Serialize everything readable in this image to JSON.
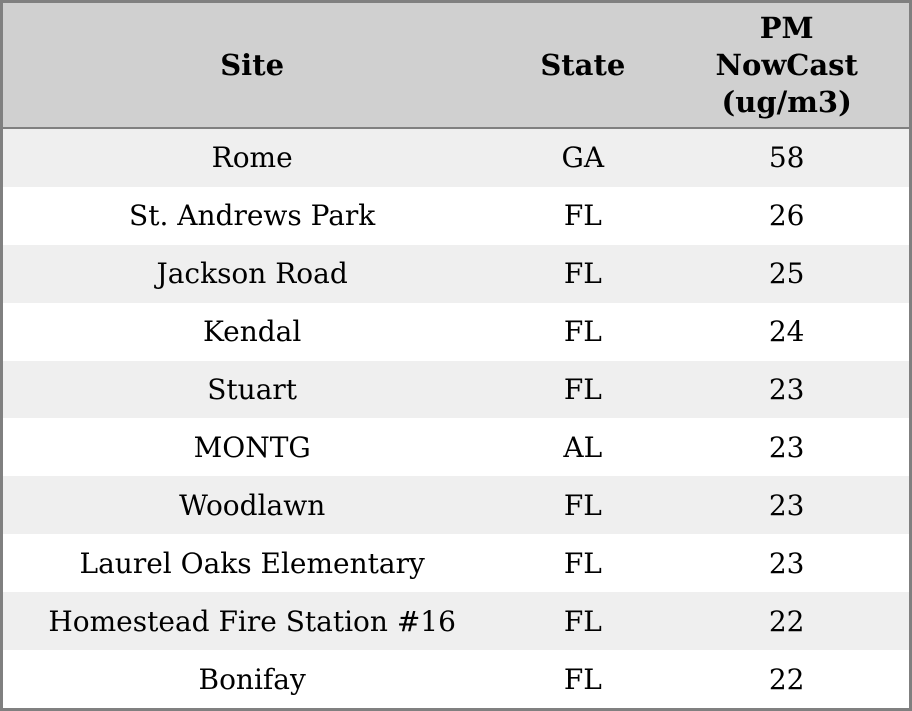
{
  "chart_data": {
    "type": "table",
    "title": "",
    "columns": [
      "Site",
      "State",
      "PM NowCast (ug/m3)"
    ],
    "rows": [
      [
        "Rome",
        "GA",
        58
      ],
      [
        "St. Andrews Park",
        "FL",
        26
      ],
      [
        "Jackson Road",
        "FL",
        25
      ],
      [
        "Kendal",
        "FL",
        24
      ],
      [
        "Stuart",
        "FL",
        23
      ],
      [
        "MONTG",
        "AL",
        23
      ],
      [
        "Woodlawn",
        "FL",
        23
      ],
      [
        "Laurel Oaks Elementary",
        "FL",
        23
      ],
      [
        "Homestead Fire Station #16",
        "FL",
        22
      ],
      [
        "Bonifay",
        "FL",
        22
      ]
    ],
    "layout": {
      "striped": true,
      "stripe_pattern": "odd rows gray, even rows white",
      "alignment": "center"
    }
  },
  "table": {
    "columns": [
      {
        "label": "Site"
      },
      {
        "label": "State"
      },
      {
        "label": "PM NowCast (ug/m3)"
      }
    ],
    "rows": [
      {
        "site": "Rome",
        "state": "GA",
        "pm": "58"
      },
      {
        "site": "St. Andrews Park",
        "state": "FL",
        "pm": "26"
      },
      {
        "site": "Jackson Road",
        "state": "FL",
        "pm": "25"
      },
      {
        "site": "Kendal",
        "state": "FL",
        "pm": "24"
      },
      {
        "site": "Stuart",
        "state": "FL",
        "pm": "23"
      },
      {
        "site": "MONTG",
        "state": "AL",
        "pm": "23"
      },
      {
        "site": "Woodlawn",
        "state": "FL",
        "pm": "23"
      },
      {
        "site": "Laurel Oaks Elementary",
        "state": "FL",
        "pm": "23"
      },
      {
        "site": "Homestead Fire Station #16",
        "state": "FL",
        "pm": "22"
      },
      {
        "site": "Bonifay",
        "state": "FL",
        "pm": "22"
      }
    ]
  },
  "colors": {
    "header_background": "#d0d0d0",
    "row_stripe": "#efefef",
    "row_plain": "#ffffff",
    "border": "#808080",
    "text": "#000000"
  }
}
